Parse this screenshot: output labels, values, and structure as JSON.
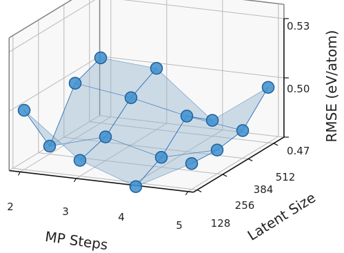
{
  "chart_data": {
    "type": "scatter3d",
    "style": "scatter with connecting lines and translucent surface",
    "xlabel": "MP Steps",
    "ylabel": "Latent Size",
    "zlabel": "RMSE (eV/atom)",
    "x_ticks": [
      "2",
      "3",
      "4",
      "5"
    ],
    "y_ticks": [
      "128",
      "256",
      "384",
      "512"
    ],
    "z_ticks": [
      "0.47",
      "0.50",
      "0.53"
    ],
    "zlim": [
      0.47,
      0.53
    ],
    "grid": true,
    "colors": {
      "marker": "#3d8fcf",
      "marker_edge": "#1f5f9a",
      "surface": "#8fb0cc",
      "line": "#2f73b5",
      "grid": "#b8b8b8",
      "pane_axis": "#808080"
    },
    "points": [
      {
        "mp": 2,
        "latent": 128,
        "rmse": 0.5
      },
      {
        "mp": 2,
        "latent": 256,
        "rmse": 0.474
      },
      {
        "mp": 2,
        "latent": 384,
        "rmse": 0.498
      },
      {
        "mp": 2,
        "latent": 512,
        "rmse": 0.503
      },
      {
        "mp": 3,
        "latent": 128,
        "rmse": 0.478
      },
      {
        "mp": 3,
        "latent": 256,
        "rmse": 0.482
      },
      {
        "mp": 3,
        "latent": 384,
        "rmse": 0.494
      },
      {
        "mp": 3,
        "latent": 512,
        "rmse": 0.501
      },
      {
        "mp": 4,
        "latent": 128,
        "rmse": 0.468
      },
      {
        "mp": 4,
        "latent": 256,
        "rmse": 0.475
      },
      {
        "mp": 4,
        "latent": 384,
        "rmse": 0.488
      },
      {
        "mp": 4,
        "latent": 512,
        "rmse": 0.478
      },
      {
        "mp": 5,
        "latent": 128,
        "rmse": 0.483
      },
      {
        "mp": 5,
        "latent": 256,
        "rmse": 0.482
      },
      {
        "mp": 5,
        "latent": 384,
        "rmse": 0.484
      },
      {
        "mp": 5,
        "latent": 512,
        "rmse": 0.498
      }
    ]
  }
}
